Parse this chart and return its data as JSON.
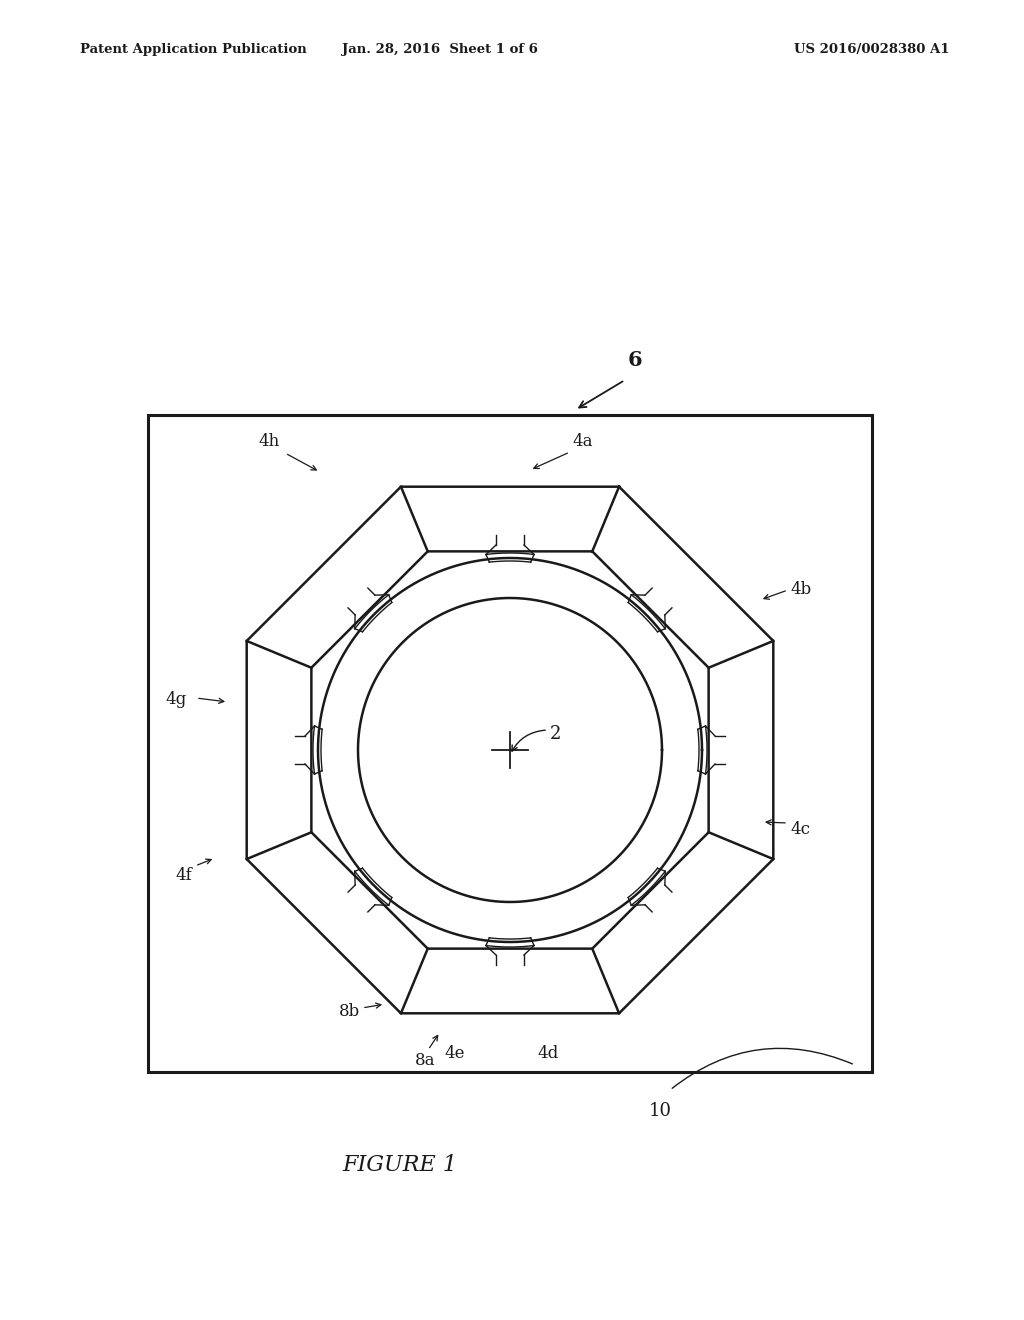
{
  "bg_color": "#ffffff",
  "line_color": "#1a1a1a",
  "header_left": "Patent Application Publication",
  "header_mid": "Jan. 28, 2016  Sheet 1 of 6",
  "header_right": "US 2016/0028380 A1",
  "figure_label": "FIGURE 1",
  "label_6": "6",
  "label_2": "2",
  "label_10": "10",
  "label_4a": "4a",
  "label_4b": "4b",
  "label_4c": "4c",
  "label_4d": "4d",
  "label_4e": "4e",
  "label_4f": "4f",
  "label_4g": "4g",
  "label_4h": "4h",
  "label_8a": "8a",
  "label_8b": "8b"
}
